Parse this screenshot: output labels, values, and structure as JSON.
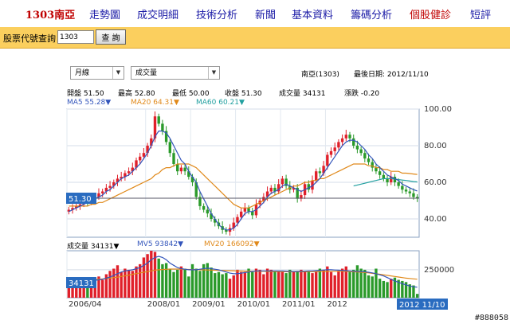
{
  "nav": {
    "stock": "1303南亞",
    "items": [
      "走勢圖",
      "成交明細",
      "技術分析",
      "新聞",
      "基本資料",
      "籌碼分析",
      "個股健診",
      "短評"
    ]
  },
  "search": {
    "label": "股票代號查詢",
    "value": "1303",
    "button": "查 詢"
  },
  "selects": {
    "period": "月線",
    "indicator": "成交量"
  },
  "header": {
    "title": "南亞(1303)",
    "date": "最後日期: 2012/11/10"
  },
  "quote": {
    "open": "開盤 51.50",
    "high": "最高 52.80",
    "low": "最低 50.00",
    "close": "收盤 51.30",
    "volume": "成交量 34131",
    "change": "漲跌 -0.20"
  },
  "ma": {
    "ma5": "MA5 55.28▼",
    "ma20": "MA20 64.31▼",
    "ma60": "MA60 60.21▼"
  },
  "volume_legend": {
    "vol": "成交量 34131▼",
    "mv5": "MV5 93842▼",
    "mv20": "MV20 166092▼"
  },
  "price_labels": {
    "last_price": "51.30",
    "last_volume": "34131",
    "last_date": "2012 11/10"
  },
  "colors": {
    "up": "#e0202a",
    "down": "#2a9a2a",
    "ma5": "#3355bb",
    "ma20": "#e0891a",
    "ma60": "#22a0a0",
    "highlight": "#2a6cc0"
  },
  "watermark": "#888058",
  "chart_data": {
    "type": "candlestick",
    "price_axis": {
      "ticks": [
        40,
        60,
        80,
        100
      ],
      "tick_labels": [
        "40.00",
        "60.00",
        "80.00",
        "100.00"
      ],
      "ylim": [
        30,
        100
      ]
    },
    "volume_axis": {
      "ticks": [
        250000
      ],
      "tick_labels": [
        "250000"
      ]
    },
    "x_labels": [
      "2006/04",
      "2008/01",
      "2009/01",
      "2010/01",
      "2011/01",
      "2012"
    ],
    "closes": [
      45,
      46,
      47,
      48,
      50,
      49,
      51,
      52,
      54,
      55,
      57,
      58,
      60,
      62,
      63,
      65,
      66,
      68,
      72,
      74,
      76,
      80,
      84,
      96,
      92,
      88,
      82,
      76,
      70,
      66,
      68,
      66,
      63,
      60,
      52,
      47,
      45,
      43,
      40,
      38,
      36,
      34,
      33,
      35,
      38,
      41,
      44,
      46,
      44,
      42,
      48,
      50,
      52,
      55,
      57,
      55,
      59,
      62,
      58,
      56,
      57,
      51,
      53,
      59,
      56,
      61,
      66,
      65,
      69,
      75,
      77,
      79,
      82,
      84,
      86,
      84,
      80,
      78,
      76,
      73,
      71,
      68,
      66,
      64,
      62,
      60,
      63,
      60,
      58,
      56,
      55,
      54,
      52,
      51.3
    ],
    "volumes": [
      90000,
      110000,
      140000,
      120000,
      180000,
      130000,
      150000,
      170000,
      190000,
      160000,
      210000,
      240000,
      260000,
      290000,
      230000,
      260000,
      250000,
      240000,
      280000,
      300000,
      360000,
      390000,
      420000,
      410000,
      350000,
      300000,
      310000,
      260000,
      230000,
      250000,
      280000,
      260000,
      190000,
      300000,
      260000,
      240000,
      300000,
      310000,
      270000,
      220000,
      230000,
      210000,
      220000,
      170000,
      200000,
      250000,
      230000,
      230000,
      260000,
      230000,
      260000,
      250000,
      210000,
      260000,
      250000,
      240000,
      240000,
      230000,
      220000,
      250000,
      230000,
      240000,
      250000,
      230000,
      240000,
      220000,
      230000,
      260000,
      250000,
      280000,
      230000,
      200000,
      240000,
      260000,
      280000,
      230000,
      250000,
      290000,
      260000,
      250000,
      200000,
      190000,
      260000,
      170000,
      150000,
      140000,
      170000,
      180000,
      160000,
      150000,
      140000,
      120000,
      110000,
      34131
    ],
    "ma5": [
      44,
      45,
      46,
      47,
      48,
      49,
      50,
      51,
      52,
      53,
      55,
      56,
      58,
      60,
      62,
      63,
      64,
      66,
      68,
      70,
      73,
      76,
      80,
      85,
      88,
      88,
      87,
      84,
      80,
      76,
      72,
      70,
      66,
      63,
      60,
      55,
      51,
      47,
      43,
      40,
      37,
      35,
      34,
      34,
      35,
      37,
      40,
      43,
      44,
      44,
      45,
      47,
      49,
      52,
      54,
      55,
      56,
      58,
      59,
      58,
      57,
      56,
      55,
      56,
      57,
      58,
      60,
      62,
      65,
      68,
      71,
      74,
      77,
      80,
      82,
      83,
      83,
      82,
      80,
      78,
      75,
      73,
      70,
      68,
      66,
      64,
      63,
      62,
      61,
      59,
      58,
      57,
      56,
      55.28
    ],
    "ma20": [
      47,
      47,
      47,
      47,
      47,
      47,
      48,
      48,
      49,
      49,
      50,
      51,
      52,
      53,
      54,
      55,
      56,
      57,
      58,
      59,
      60,
      61,
      62,
      64,
      65,
      67,
      68,
      68,
      69,
      70,
      70,
      70,
      70,
      69,
      68,
      66,
      64,
      62,
      60,
      58,
      56,
      54,
      52,
      50,
      48,
      47,
      46,
      46,
      46,
      47,
      48,
      49,
      50,
      51,
      52,
      53,
      54,
      55,
      56,
      57,
      58,
      58,
      59,
      60,
      60,
      61,
      61,
      62,
      62,
      63,
      64,
      65,
      66,
      67,
      68,
      69,
      70,
      70,
      70,
      70,
      69,
      69,
      68,
      68,
      67,
      67,
      66,
      66,
      66,
      65,
      65,
      64.8,
      64.5,
      64.31
    ],
    "ma60": [
      null,
      null,
      null,
      null,
      null,
      null,
      null,
      null,
      null,
      null,
      null,
      null,
      null,
      null,
      null,
      null,
      null,
      null,
      null,
      null,
      null,
      null,
      null,
      null,
      null,
      null,
      null,
      null,
      null,
      null,
      null,
      null,
      null,
      null,
      null,
      null,
      null,
      null,
      null,
      null,
      null,
      null,
      null,
      null,
      null,
      null,
      null,
      null,
      null,
      null,
      null,
      null,
      null,
      null,
      null,
      null,
      null,
      null,
      null,
      null,
      null,
      null,
      null,
      null,
      null,
      null,
      null,
      null,
      null,
      null,
      null,
      null,
      null,
      null,
      null,
      null,
      58,
      58.5,
      59,
      59.5,
      60,
      60.5,
      61,
      61.5,
      62,
      62,
      62,
      61.8,
      61.5,
      61.2,
      61,
      60.7,
      60.4,
      60.21
    ],
    "mv5": [
      120000,
      125000,
      130000,
      135000,
      140000,
      145000,
      150000,
      155000,
      160000,
      165000,
      175000,
      185000,
      200000,
      215000,
      230000,
      240000,
      245000,
      250000,
      260000,
      270000,
      290000,
      310000,
      340000,
      360000,
      370000,
      360000,
      340000,
      310000,
      290000,
      270000,
      260000,
      255000,
      250000,
      250000,
      250000,
      255000,
      260000,
      265000,
      260000,
      255000,
      250000,
      240000,
      230000,
      220000,
      215000,
      215000,
      220000,
      225000,
      230000,
      235000,
      240000,
      240000,
      240000,
      240000,
      240000,
      240000,
      240000,
      240000,
      238000,
      236000,
      235000,
      235000,
      236000,
      238000,
      240000,
      240000,
      242000,
      245000,
      248000,
      250000,
      250000,
      248000,
      246000,
      244000,
      242000,
      240000,
      238000,
      236000,
      234000,
      232000,
      228000,
      222000,
      215000,
      205000,
      195000,
      180000,
      165000,
      150000,
      138000,
      125000,
      115000,
      105000,
      98000,
      93842
    ],
    "mv20": [
      150000,
      152000,
      154000,
      156000,
      158000,
      160000,
      162000,
      164000,
      166000,
      168000,
      172000,
      176000,
      180000,
      184000,
      190000,
      196000,
      202000,
      210000,
      216000,
      222000,
      228000,
      234000,
      240000,
      246000,
      250000,
      252000,
      254000,
      256000,
      256000,
      256000,
      255000,
      254000,
      253000,
      252000,
      251000,
      250000,
      249000,
      248000,
      247000,
      246000,
      245000,
      244000,
      243000,
      242000,
      241000,
      240000,
      239000,
      238000,
      238000,
      237000,
      237000,
      236000,
      236000,
      235000,
      235000,
      234000,
      234000,
      233000,
      233000,
      232000,
      232000,
      232000,
      232000,
      232000,
      233000,
      233000,
      234000,
      234000,
      235000,
      235000,
      236000,
      236000,
      236000,
      236000,
      235000,
      234000,
      232000,
      230000,
      228000,
      225000,
      222000,
      218000,
      214000,
      210000,
      205000,
      200000,
      195000,
      190000,
      185000,
      180000,
      175000,
      172000,
      169000,
      166092
    ]
  }
}
